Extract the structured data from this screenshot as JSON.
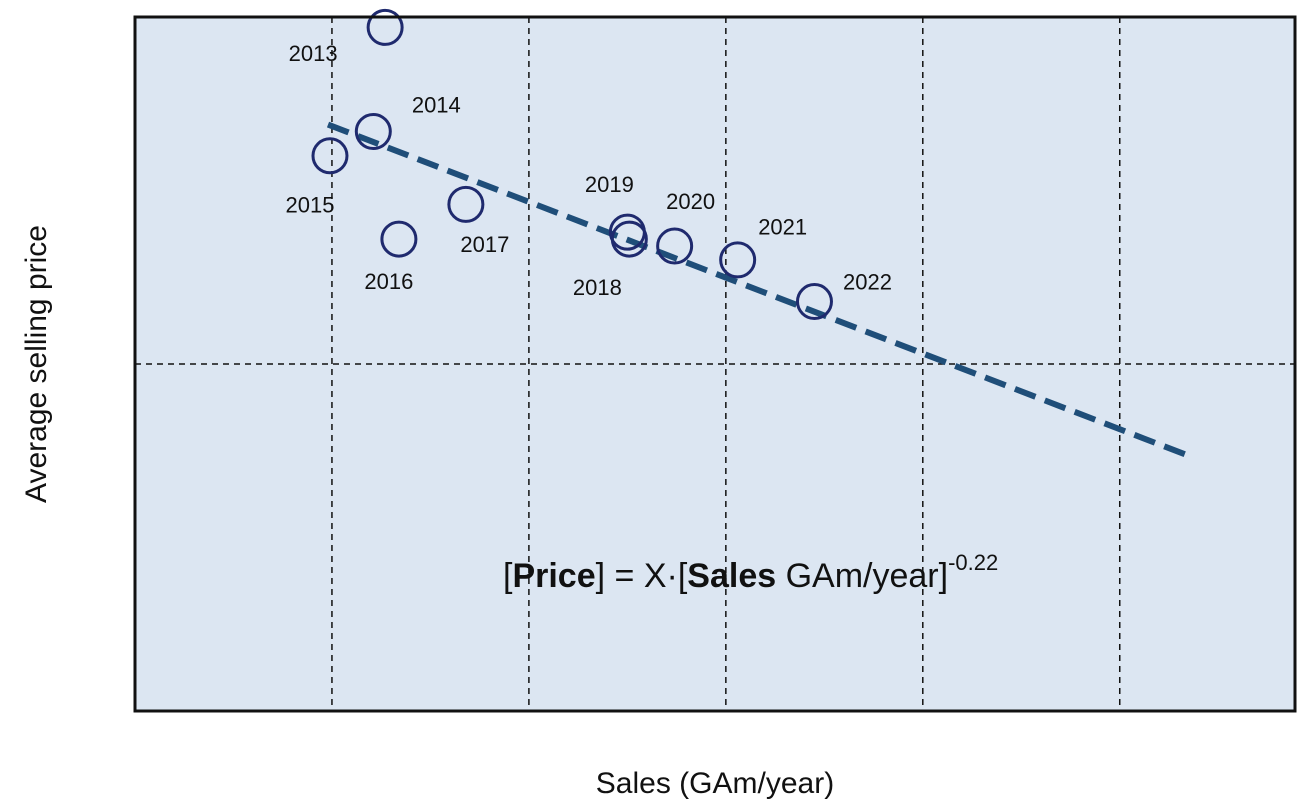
{
  "chart_data": {
    "type": "scatter",
    "x_label": "Sales  (GAm/year)",
    "y_label": "Average selling price",
    "labels": [
      "2013",
      "2014",
      "2015",
      "2016",
      "2017",
      "2018",
      "2019",
      "2020",
      "2021",
      "2022"
    ],
    "x": [
      1.27,
      1.21,
      0.99,
      1.34,
      1.68,
      2.51,
      2.5,
      2.74,
      3.06,
      3.45
    ],
    "values": [
      1.97,
      1.67,
      1.6,
      1.36,
      1.46,
      1.36,
      1.38,
      1.34,
      1.3,
      1.18
    ],
    "color": "#1f2a6e",
    "trend": {
      "x": [
        0.98,
        5.33
      ],
      "y": [
        1.69,
        0.74
      ],
      "color": "#1f4e79"
    },
    "annotation": [
      "[",
      "Price",
      "] = X·[",
      "Sales",
      " GAm/year]",
      "-0.22"
    ],
    "xlim": [
      0,
      5.9
    ],
    "ylim": [
      0,
      2
    ],
    "xticks": [
      1,
      2,
      3,
      4,
      5
    ],
    "yticks": [
      1
    ],
    "grid": true,
    "background": "#dce6f2"
  }
}
